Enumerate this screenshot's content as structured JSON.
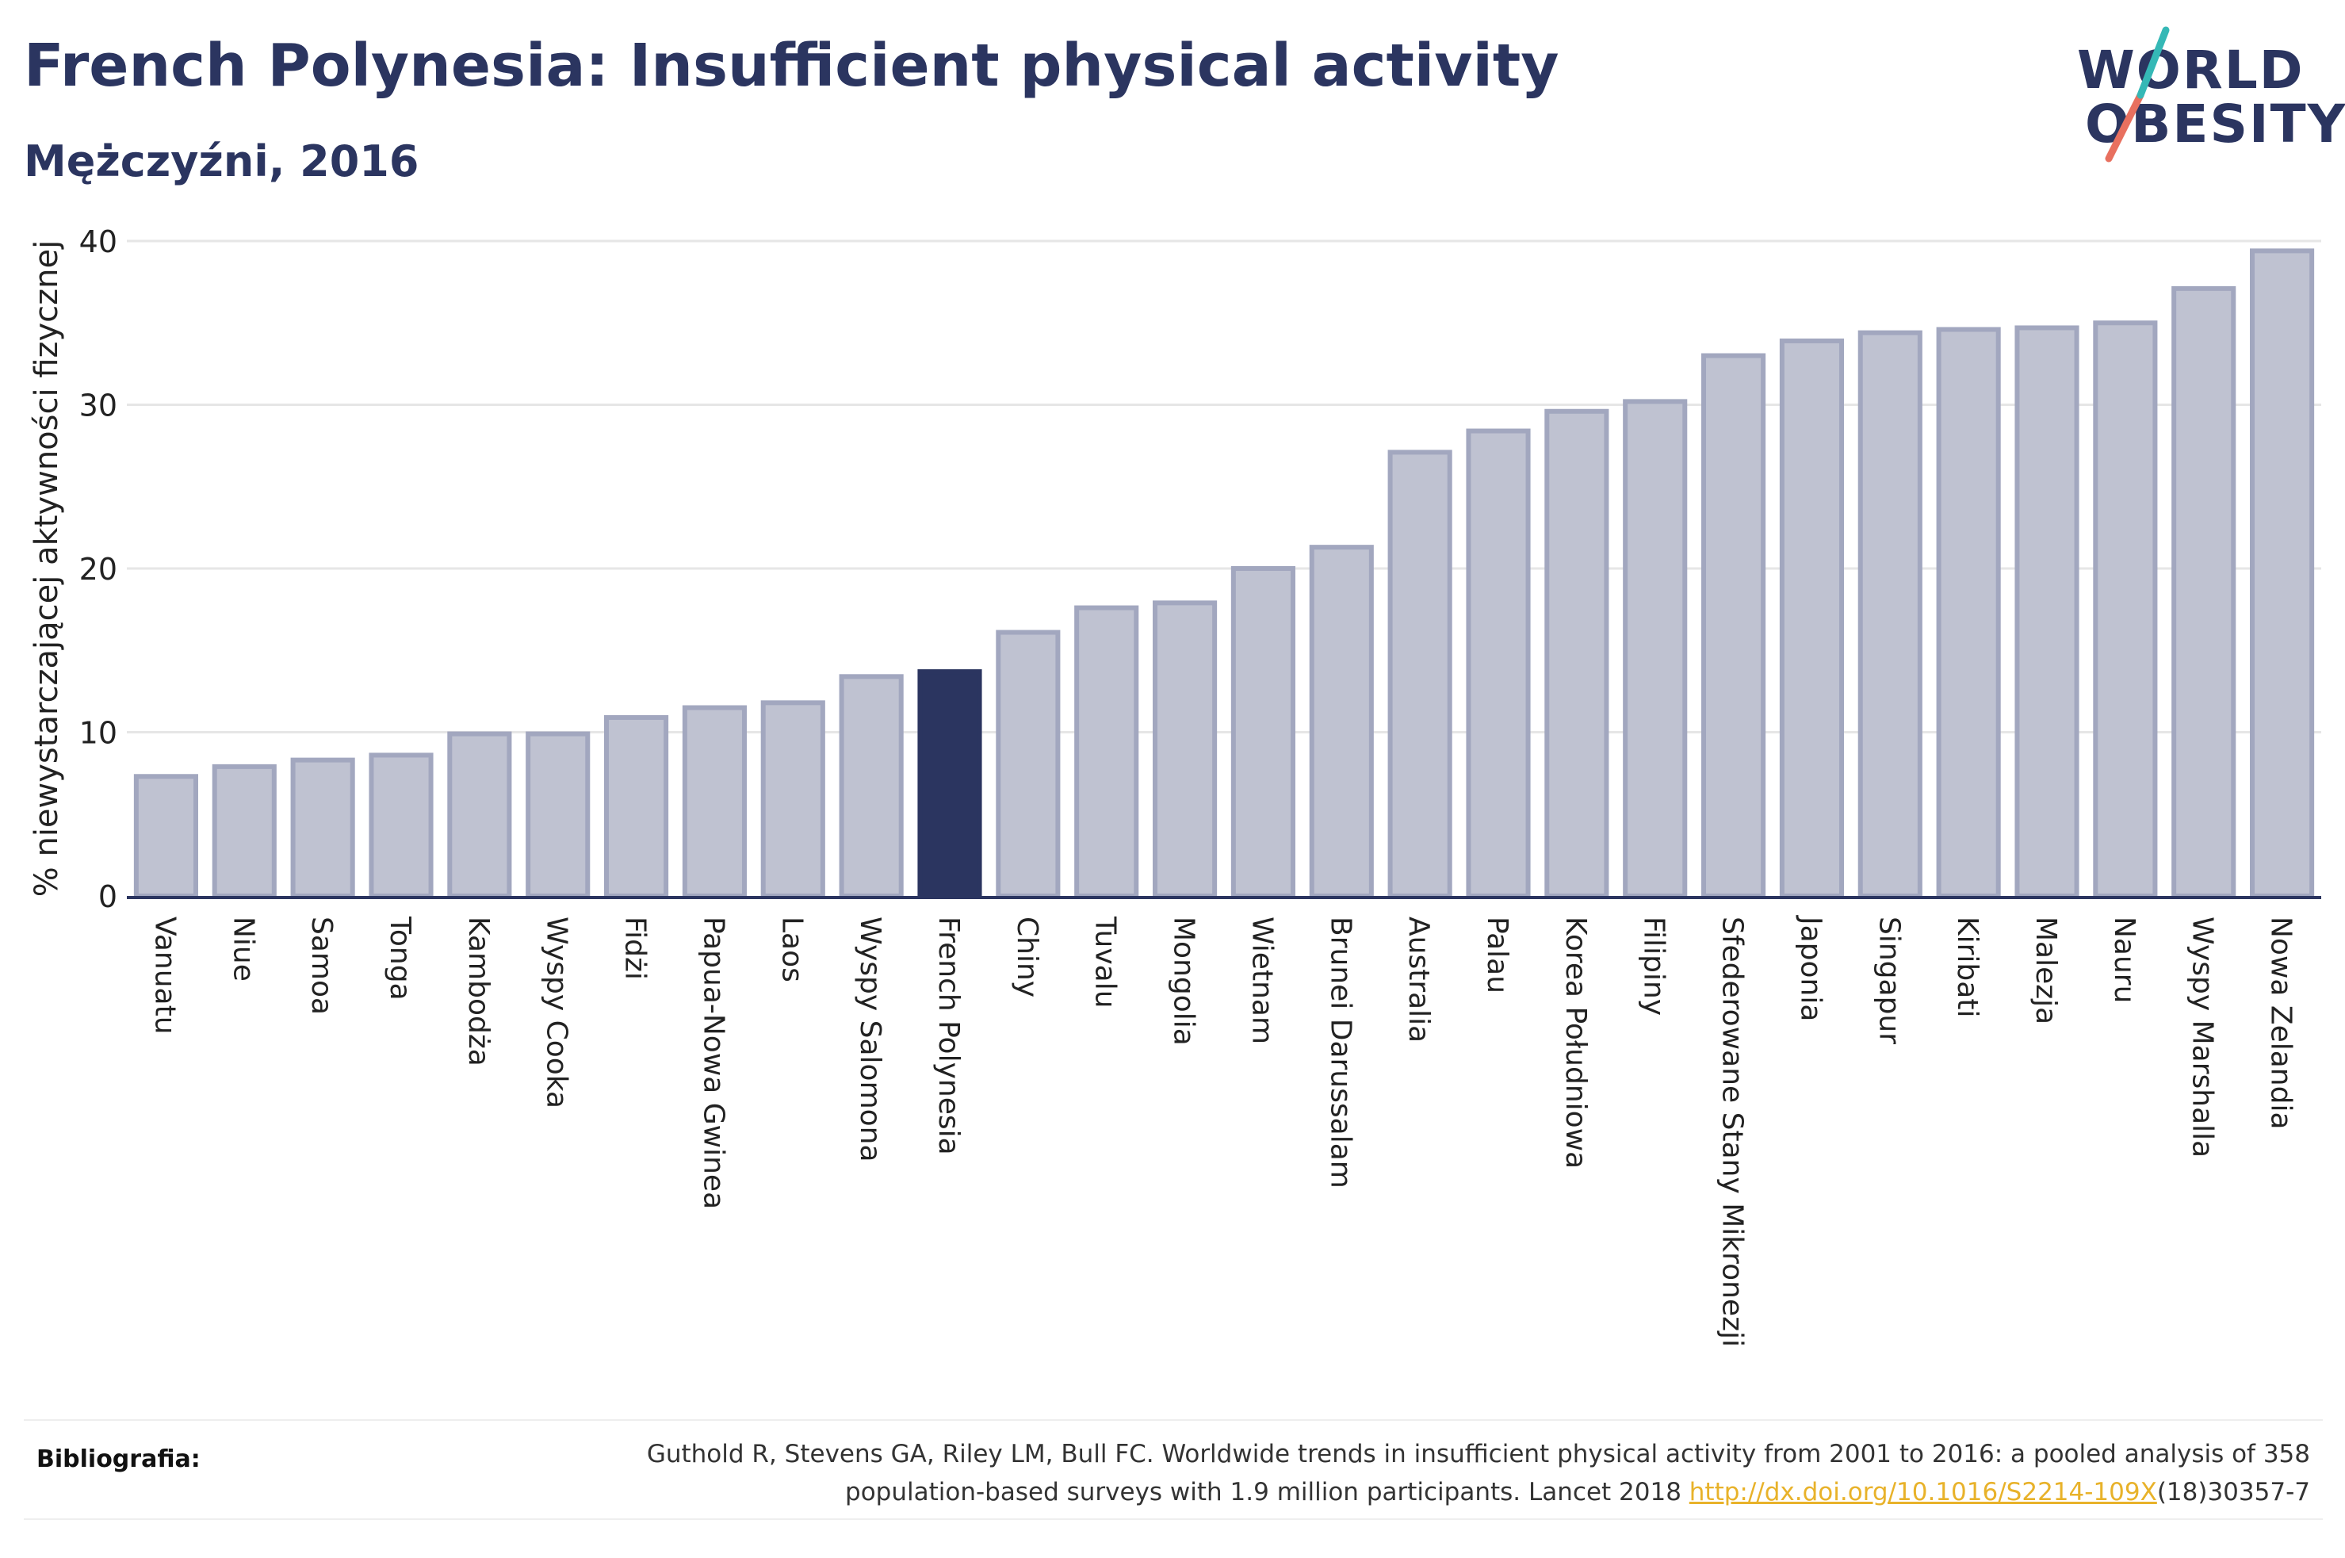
{
  "header": {
    "title": "French Polynesia: Insufficient physical activity",
    "subtitle": "Mężczyźni, 2016"
  },
  "logo": {
    "line1": "WORLD",
    "line2": "OBESITY"
  },
  "chart_data": {
    "type": "bar",
    "ylabel": "% niewystarczającej aktywności fizycznej",
    "ylim": [
      0,
      40
    ],
    "yticks": [
      0,
      10,
      20,
      30,
      40
    ],
    "grid": true,
    "categories": [
      "Vanuatu",
      "Niue",
      "Samoa",
      "Tonga",
      "Kambodża",
      "Wyspy Cooka",
      "Fidżi",
      "Papua-Nowa Gwinea",
      "Laos",
      "Wyspy Salomona",
      "French Polynesia",
      "Chiny",
      "Tuvalu",
      "Mongolia",
      "Wietnam",
      "Brunei Darussalam",
      "Australia",
      "Palau",
      "Korea Południowa",
      "Filipiny",
      "Sfederowane Stany Mikronezji",
      "Japonia",
      "Singapur",
      "Kiribati",
      "Malezja",
      "Nauru",
      "Wyspy Marshalla",
      "Nowa Zelandia"
    ],
    "values": [
      7.3,
      7.9,
      8.3,
      8.6,
      9.9,
      9.9,
      10.9,
      11.5,
      11.8,
      13.4,
      13.7,
      16.1,
      17.6,
      17.9,
      20.0,
      21.3,
      27.1,
      28.4,
      29.6,
      30.2,
      33.0,
      33.9,
      34.4,
      34.6,
      34.7,
      35.0,
      37.1,
      39.4
    ],
    "highlight": "French Polynesia",
    "colors": {
      "bar": "#bfc2d1",
      "bar_edge": "#a2a7bf",
      "highlight": "#2b3560",
      "grid": "#e6e6e6",
      "axis": "#2b3560"
    }
  },
  "footer": {
    "label": "Bibliografia:",
    "text_line1": "Guthold R, Stevens GA, Riley LM, Bull FC. Worldwide trends in insufficient physical activity from 2001 to 2016: a pooled analysis of 358",
    "text_line2_pre": "population-based surveys with 1.9 million participants. Lancet 2018 ",
    "link": "http://dx.doi.org/10.1016/S2214-109X",
    "text_line2_post": "(18)30357-7"
  }
}
